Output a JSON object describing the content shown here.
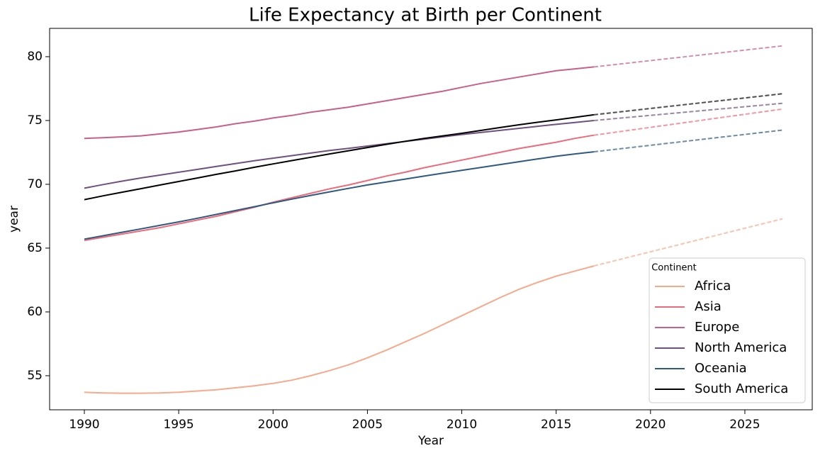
{
  "chart_data": {
    "type": "line",
    "title": "Life Expectancy at Birth per Continent",
    "x_label": "Year",
    "y_label": "year",
    "x": [
      1990,
      1991,
      1992,
      1993,
      1994,
      1995,
      1996,
      1997,
      1998,
      1999,
      2000,
      2001,
      2002,
      2003,
      2004,
      2005,
      2006,
      2007,
      2008,
      2009,
      2010,
      2011,
      2012,
      2013,
      2014,
      2015,
      2016,
      2017,
      2027
    ],
    "series": [
      {
        "name": "Africa",
        "color": "#f7a98c",
        "values": [
          53.7,
          53.65,
          53.63,
          53.63,
          53.65,
          53.7,
          53.8,
          53.9,
          54.05,
          54.2,
          54.4,
          54.65,
          55.0,
          55.4,
          55.85,
          56.4,
          57.0,
          57.65,
          58.3,
          59.0,
          59.7,
          60.4,
          61.1,
          61.75,
          62.3,
          62.8,
          63.2,
          63.6,
          67.3
        ]
      },
      {
        "name": "Asia",
        "color": "#ee6a7a",
        "values": [
          65.6,
          65.85,
          66.1,
          66.35,
          66.6,
          66.9,
          67.2,
          67.5,
          67.85,
          68.2,
          68.6,
          68.95,
          69.3,
          69.65,
          69.95,
          70.3,
          70.65,
          70.95,
          71.3,
          71.6,
          71.9,
          72.2,
          72.5,
          72.8,
          73.05,
          73.3,
          73.6,
          73.85,
          75.9
        ]
      },
      {
        "name": "Europe",
        "color": "#c8608a",
        "values": [
          73.6,
          73.65,
          73.72,
          73.8,
          73.95,
          74.1,
          74.3,
          74.5,
          74.75,
          74.95,
          75.2,
          75.4,
          75.65,
          75.85,
          76.05,
          76.3,
          76.55,
          76.8,
          77.05,
          77.3,
          77.6,
          77.9,
          78.15,
          78.4,
          78.65,
          78.9,
          79.05,
          79.2,
          80.85
        ]
      },
      {
        "name": "North America",
        "color": "#6f5080",
        "values": [
          69.7,
          69.98,
          70.25,
          70.5,
          70.72,
          70.95,
          71.17,
          71.4,
          71.62,
          71.85,
          72.05,
          72.25,
          72.45,
          72.65,
          72.82,
          73.0,
          73.18,
          73.36,
          73.54,
          73.72,
          73.9,
          74.06,
          74.22,
          74.38,
          74.54,
          74.7,
          74.85,
          75.0,
          76.35
        ]
      },
      {
        "name": "Oceania",
        "color": "#2e5a80",
        "values": [
          65.7,
          65.97,
          66.24,
          66.51,
          66.78,
          67.05,
          67.34,
          67.64,
          67.94,
          68.24,
          68.55,
          68.84,
          69.13,
          69.41,
          69.68,
          69.95,
          70.18,
          70.41,
          70.64,
          70.87,
          71.1,
          71.32,
          71.54,
          71.76,
          71.98,
          72.2,
          72.38,
          72.55,
          74.25
        ]
      },
      {
        "name": "South America",
        "color": "#000000",
        "values": [
          68.8,
          69.1,
          69.38,
          69.66,
          69.94,
          70.22,
          70.5,
          70.78,
          71.05,
          71.33,
          71.6,
          71.86,
          72.12,
          72.38,
          72.63,
          72.88,
          73.13,
          73.37,
          73.6,
          73.8,
          74.0,
          74.22,
          74.44,
          74.66,
          74.86,
          75.05,
          75.25,
          75.45,
          77.1
        ]
      }
    ],
    "last_segment_dashed": true,
    "legend_title": "Continent",
    "legend_position": "lower right",
    "xlim": [
      1988.16,
      2028.57
    ],
    "xticks": [
      1990,
      1995,
      2000,
      2005,
      2010,
      2015,
      2020,
      2025
    ],
    "ylim": [
      52.33,
      82.22
    ],
    "yticks": [
      55,
      60,
      65,
      70,
      75,
      80
    ]
  }
}
